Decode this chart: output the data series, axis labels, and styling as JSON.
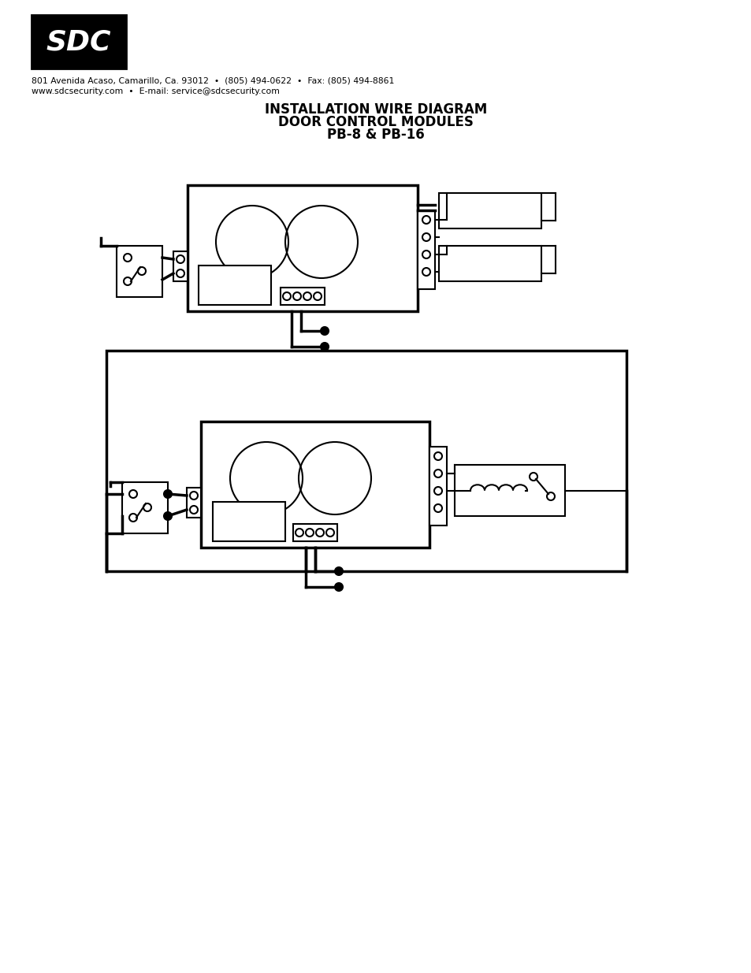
{
  "bg_color": "#ffffff",
  "title_line1": "INSTALLATION WIRE DIAGRAM",
  "title_line2": "DOOR CONTROL MODULES",
  "title_line3": "PB-8 & PB-16",
  "header_line1": "801 Avenida Acaso, Camarillo, Ca. 93012  •  (805) 494-0622  •  Fax: (805) 494-8861",
  "header_line2": "www.sdcsecurity.com  •  E-mail: service@sdcsecurity.com",
  "lw": 1.5,
  "lw2": 2.5
}
